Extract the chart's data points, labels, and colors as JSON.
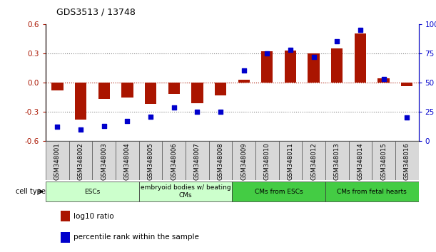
{
  "title": "GDS3513 / 13748",
  "samples": [
    "GSM348001",
    "GSM348002",
    "GSM348003",
    "GSM348004",
    "GSM348005",
    "GSM348006",
    "GSM348007",
    "GSM348008",
    "GSM348009",
    "GSM348010",
    "GSM348011",
    "GSM348012",
    "GSM348013",
    "GSM348014",
    "GSM348015",
    "GSM348016"
  ],
  "log10_ratio": [
    -0.08,
    -0.38,
    -0.17,
    -0.15,
    -0.22,
    -0.12,
    -0.21,
    -0.13,
    0.03,
    0.32,
    0.33,
    0.3,
    0.35,
    0.5,
    0.04,
    -0.04
  ],
  "percentile_rank": [
    12,
    10,
    13,
    17,
    21,
    29,
    25,
    25,
    60,
    75,
    78,
    72,
    85,
    95,
    53,
    20
  ],
  "bar_color": "#AA1500",
  "dot_color": "#0000CC",
  "ylim": [
    -0.6,
    0.6
  ],
  "yticks_left": [
    -0.6,
    -0.3,
    0.0,
    0.3,
    0.6
  ],
  "yticks_right": [
    0,
    25,
    50,
    75,
    100
  ],
  "cell_type_groups": [
    {
      "label": "ESCs",
      "start": 0,
      "end": 4,
      "color": "#CCFFCC"
    },
    {
      "label": "embryoid bodies w/ beating\nCMs",
      "start": 4,
      "end": 8,
      "color": "#CCFFCC"
    },
    {
      "label": "CMs from ESCs",
      "start": 8,
      "end": 12,
      "color": "#44CC44"
    },
    {
      "label": "CMs from fetal hearts",
      "start": 12,
      "end": 16,
      "color": "#44CC44"
    }
  ],
  "legend_entries": [
    {
      "color": "#AA1500",
      "label": "log10 ratio"
    },
    {
      "color": "#0000CC",
      "label": "percentile rank within the sample"
    }
  ]
}
